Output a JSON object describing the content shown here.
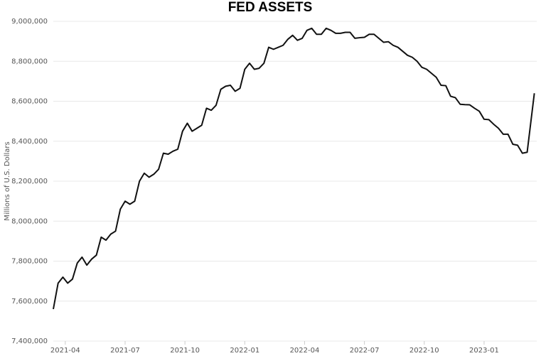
{
  "chart_data": {
    "type": "line",
    "title": "FED ASSETS",
    "y_label": "Millions of U.S. Dollars",
    "x": [
      2021.2,
      2021.22,
      2021.24,
      2021.26,
      2021.28,
      2021.3,
      2021.32,
      2021.34,
      2021.36,
      2021.38,
      2021.4,
      2021.42,
      2021.44,
      2021.46,
      2021.48,
      2021.5,
      2021.52,
      2021.54,
      2021.56,
      2021.58,
      2021.6,
      2021.62,
      2021.64,
      2021.66,
      2021.68,
      2021.7,
      2021.72,
      2021.74,
      2021.76,
      2021.78,
      2021.8,
      2021.82,
      2021.84,
      2021.86,
      2021.88,
      2021.9,
      2021.92,
      2021.94,
      2021.96,
      2021.98,
      2022.0,
      2022.02,
      2022.04,
      2022.06,
      2022.08,
      2022.1,
      2022.12,
      2022.14,
      2022.16,
      2022.18,
      2022.2,
      2022.22,
      2022.24,
      2022.26,
      2022.28,
      2022.3,
      2022.32,
      2022.34,
      2022.36,
      2022.38,
      2022.4,
      2022.42,
      2022.44,
      2022.46,
      2022.48,
      2022.5,
      2022.52,
      2022.54,
      2022.56,
      2022.58,
      2022.6,
      2022.62,
      2022.64,
      2022.66,
      2022.68,
      2022.7,
      2022.72,
      2022.74,
      2022.76,
      2022.78,
      2022.8,
      2022.82,
      2022.84,
      2022.86,
      2022.88,
      2022.9,
      2022.92,
      2022.94,
      2022.96,
      2022.98,
      2023.0,
      2023.02,
      2023.04,
      2023.06,
      2023.08,
      2023.1,
      2023.12,
      2023.14,
      2023.16,
      2023.18,
      2023.21
    ],
    "series": [
      {
        "name": "Fed assets",
        "color": "#111111",
        "values": [
          7560000,
          7690000,
          7720000,
          7690000,
          7710000,
          7790000,
          7820000,
          7780000,
          7810000,
          7830000,
          7920000,
          7905000,
          7935000,
          7950000,
          8060000,
          8100000,
          8085000,
          8100000,
          8200000,
          8240000,
          8220000,
          8235000,
          8260000,
          8340000,
          8335000,
          8350000,
          8360000,
          8450000,
          8490000,
          8450000,
          8465000,
          8480000,
          8565000,
          8555000,
          8580000,
          8660000,
          8675000,
          8680000,
          8650000,
          8665000,
          8760000,
          8790000,
          8760000,
          8765000,
          8790000,
          8870000,
          8860000,
          8870000,
          8880000,
          8910000,
          8930000,
          8905000,
          8915000,
          8955000,
          8965000,
          8935000,
          8935000,
          8965000,
          8955000,
          8940000,
          8940000,
          8945000,
          8945000,
          8915000,
          8918000,
          8920000,
          8935000,
          8935000,
          8915000,
          8895000,
          8898000,
          8880000,
          8870000,
          8850000,
          8830000,
          8820000,
          8800000,
          8770000,
          8760000,
          8740000,
          8720000,
          8680000,
          8678000,
          8625000,
          8618000,
          8585000,
          8583000,
          8582000,
          8565000,
          8550000,
          8510000,
          8508000,
          8485000,
          8465000,
          8435000,
          8435000,
          8385000,
          8380000,
          8340000,
          8345000,
          8640000
        ]
      }
    ],
    "xlim": [
      2021.2,
      2023.22
    ],
    "xticks": [
      {
        "value": 2021.25,
        "label": "2021-04"
      },
      {
        "value": 2021.5,
        "label": "2021-07"
      },
      {
        "value": 2021.75,
        "label": "2021-10"
      },
      {
        "value": 2022.0,
        "label": "2022-01"
      },
      {
        "value": 2022.25,
        "label": "2022-04"
      },
      {
        "value": 2022.5,
        "label": "2022-07"
      },
      {
        "value": 2022.75,
        "label": "2022-10"
      },
      {
        "value": 2023.0,
        "label": "2023-01"
      }
    ],
    "ylim": [
      7400000,
      9000000
    ],
    "yticks": [
      {
        "value": 7400000,
        "label": "7,400,000"
      },
      {
        "value": 7600000,
        "label": "7,600,000"
      },
      {
        "value": 7800000,
        "label": "7,800,000"
      },
      {
        "value": 8000000,
        "label": "8,000,000"
      },
      {
        "value": 8200000,
        "label": "8,200,000"
      },
      {
        "value": 8400000,
        "label": "8,400,000"
      },
      {
        "value": 8600000,
        "label": "8,600,000"
      },
      {
        "value": 8800000,
        "label": "8,800,000"
      },
      {
        "value": 9000000,
        "label": "9,000,000"
      }
    ],
    "grid": true
  }
}
